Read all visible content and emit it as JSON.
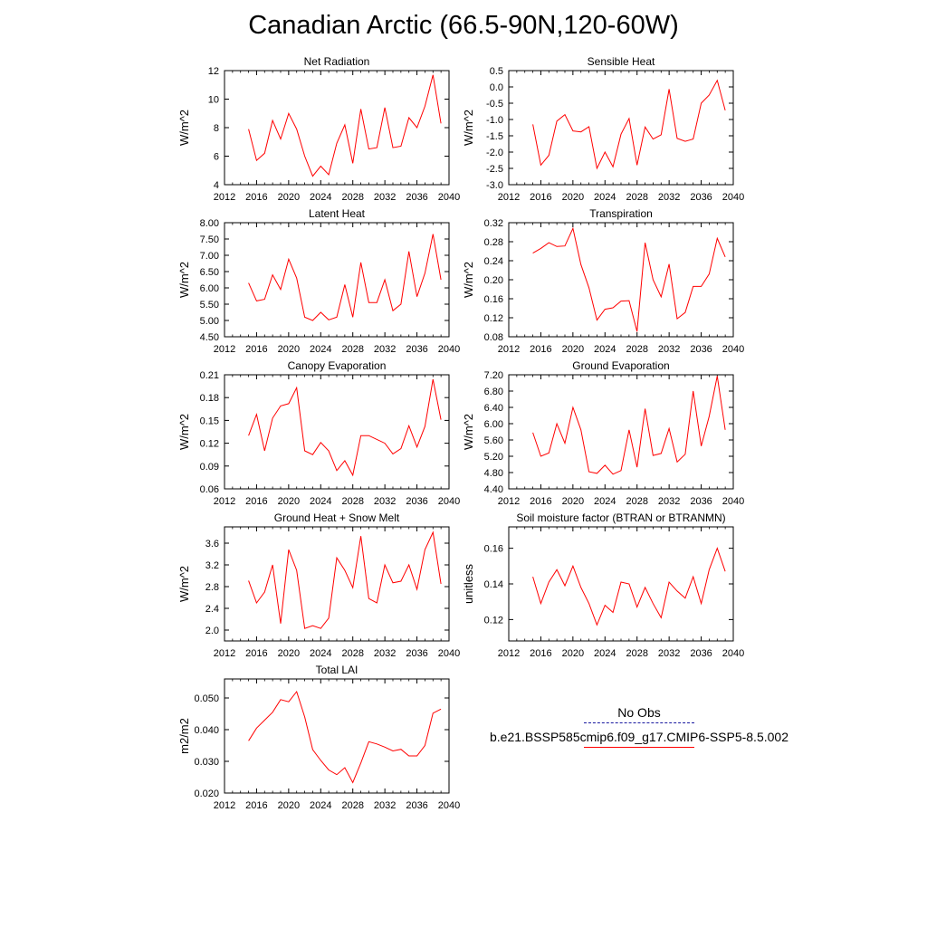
{
  "figure": {
    "title": "Canadian Arctic (66.5-90N,120-60W)"
  },
  "legend": [
    {
      "label": "No Obs",
      "style": "dashed",
      "color": "#1a1aa0"
    },
    {
      "label": "b.e21.BSSP585cmip6.f09_g17.CMIP6-SSP5-8.5.002",
      "style": "solid",
      "color": "#ff0000"
    }
  ],
  "chart_data": [
    {
      "type": "line",
      "title": "Net Radiation",
      "ylabel": "W/m^2",
      "xlim": [
        2012,
        2040
      ],
      "xticks": [
        2012,
        2016,
        2020,
        2024,
        2028,
        2032,
        2036,
        2040
      ],
      "ylim": [
        4,
        12
      ],
      "yticks": [
        "4",
        "6",
        "8",
        "10",
        "12"
      ],
      "series": [
        {
          "color": "#ff0000",
          "x": [
            2015,
            2016,
            2017,
            2018,
            2019,
            2020,
            2021,
            2022,
            2023,
            2024,
            2025,
            2026,
            2027,
            2028,
            2029,
            2030,
            2031,
            2032,
            2033,
            2034,
            2035,
            2036,
            2037,
            2038,
            2039
          ],
          "values": [
            7.9,
            5.7,
            6.2,
            8.5,
            7.2,
            9.0,
            7.9,
            6.0,
            4.6,
            5.3,
            4.7,
            6.9,
            8.2,
            5.5,
            9.3,
            6.5,
            6.6,
            9.4,
            6.6,
            6.7,
            8.7,
            8.0,
            9.5,
            11.7,
            8.3
          ]
        }
      ]
    },
    {
      "type": "line",
      "title": "Sensible Heat",
      "ylabel": "W/m^2",
      "xlim": [
        2012,
        2040
      ],
      "xticks": [
        2012,
        2016,
        2020,
        2024,
        2028,
        2032,
        2036,
        2040
      ],
      "ylim": [
        -3.0,
        0.5
      ],
      "yticks": [
        "-3.0",
        "-2.5",
        "-2.0",
        "-1.5",
        "-1.0",
        "-0.5",
        "0.0",
        "0.5"
      ],
      "series": [
        {
          "color": "#ff0000",
          "x": [
            2015,
            2016,
            2017,
            2018,
            2019,
            2020,
            2021,
            2022,
            2023,
            2024,
            2025,
            2026,
            2027,
            2028,
            2029,
            2030,
            2031,
            2032,
            2033,
            2034,
            2035,
            2036,
            2037,
            2038,
            2039
          ],
          "values": [
            -1.15,
            -2.4,
            -2.1,
            -1.05,
            -0.85,
            -1.35,
            -1.38,
            -1.22,
            -2.5,
            -2.0,
            -2.45,
            -1.45,
            -0.97,
            -2.4,
            -1.23,
            -1.6,
            -1.47,
            -0.07,
            -1.58,
            -1.67,
            -1.6,
            -0.5,
            -0.25,
            0.2,
            -0.72
          ]
        }
      ]
    },
    {
      "type": "line",
      "title": "Latent Heat",
      "ylabel": "W/m^2",
      "xlim": [
        2012,
        2040
      ],
      "xticks": [
        2012,
        2016,
        2020,
        2024,
        2028,
        2032,
        2036,
        2040
      ],
      "ylim": [
        4.5,
        8.0
      ],
      "yticks": [
        "4.50",
        "5.00",
        "5.50",
        "6.00",
        "6.50",
        "7.00",
        "7.50",
        "8.00"
      ],
      "series": [
        {
          "color": "#ff0000",
          "x": [
            2015,
            2016,
            2017,
            2018,
            2019,
            2020,
            2021,
            2022,
            2023,
            2024,
            2025,
            2026,
            2027,
            2028,
            2029,
            2030,
            2031,
            2032,
            2033,
            2034,
            2035,
            2036,
            2037,
            2038,
            2039
          ],
          "values": [
            6.15,
            5.6,
            5.65,
            6.4,
            5.95,
            6.88,
            6.3,
            5.1,
            5.0,
            5.25,
            5.02,
            5.1,
            6.1,
            5.1,
            6.78,
            5.55,
            5.55,
            6.25,
            5.3,
            5.5,
            7.12,
            5.73,
            6.45,
            7.65,
            6.25
          ]
        }
      ]
    },
    {
      "type": "line",
      "title": "Transpiration",
      "ylabel": "W/m^2",
      "xlim": [
        2012,
        2040
      ],
      "xticks": [
        2012,
        2016,
        2020,
        2024,
        2028,
        2032,
        2036,
        2040
      ],
      "ylim": [
        0.08,
        0.32
      ],
      "yticks": [
        "0.08",
        "0.12",
        "0.16",
        "0.20",
        "0.24",
        "0.28",
        "0.32"
      ],
      "series": [
        {
          "color": "#ff0000",
          "x": [
            2015,
            2016,
            2017,
            2018,
            2019,
            2020,
            2021,
            2022,
            2023,
            2024,
            2025,
            2026,
            2027,
            2028,
            2029,
            2030,
            2031,
            2032,
            2033,
            2034,
            2035,
            2036,
            2037,
            2038,
            2039
          ],
          "values": [
            0.256,
            0.266,
            0.278,
            0.27,
            0.271,
            0.308,
            0.232,
            0.183,
            0.115,
            0.138,
            0.141,
            0.155,
            0.156,
            0.091,
            0.278,
            0.2,
            0.164,
            0.233,
            0.118,
            0.131,
            0.186,
            0.186,
            0.212,
            0.287,
            0.248
          ]
        }
      ]
    },
    {
      "type": "line",
      "title": "Canopy Evaporation",
      "ylabel": "W/m^2",
      "xlim": [
        2012,
        2040
      ],
      "xticks": [
        2012,
        2016,
        2020,
        2024,
        2028,
        2032,
        2036,
        2040
      ],
      "ylim": [
        0.06,
        0.21
      ],
      "yticks": [
        "0.06",
        "0.09",
        "0.12",
        "0.15",
        "0.18",
        "0.21"
      ],
      "series": [
        {
          "color": "#ff0000",
          "x": [
            2015,
            2016,
            2017,
            2018,
            2019,
            2020,
            2021,
            2022,
            2023,
            2024,
            2025,
            2026,
            2027,
            2028,
            2029,
            2030,
            2031,
            2032,
            2033,
            2034,
            2035,
            2036,
            2037,
            2038,
            2039
          ],
          "values": [
            0.13,
            0.158,
            0.11,
            0.153,
            0.169,
            0.172,
            0.193,
            0.11,
            0.105,
            0.121,
            0.11,
            0.084,
            0.097,
            0.078,
            0.13,
            0.13,
            0.125,
            0.12,
            0.106,
            0.113,
            0.143,
            0.115,
            0.142,
            0.204,
            0.151
          ]
        }
      ]
    },
    {
      "type": "line",
      "title": "Ground Evaporation",
      "ylabel": "W/m^2",
      "xlim": [
        2012,
        2040
      ],
      "xticks": [
        2012,
        2016,
        2020,
        2024,
        2028,
        2032,
        2036,
        2040
      ],
      "ylim": [
        4.4,
        7.2
      ],
      "yticks": [
        "4.40",
        "4.80",
        "5.20",
        "5.60",
        "6.00",
        "6.40",
        "6.80",
        "7.20"
      ],
      "series": [
        {
          "color": "#ff0000",
          "x": [
            2015,
            2016,
            2017,
            2018,
            2019,
            2020,
            2021,
            2022,
            2023,
            2024,
            2025,
            2026,
            2027,
            2028,
            2029,
            2030,
            2031,
            2032,
            2033,
            2034,
            2035,
            2036,
            2037,
            2038,
            2039
          ],
          "values": [
            5.78,
            5.2,
            5.28,
            6.0,
            5.52,
            6.4,
            5.85,
            4.82,
            4.78,
            4.98,
            4.76,
            4.85,
            5.85,
            4.93,
            6.37,
            5.22,
            5.27,
            5.88,
            5.06,
            5.25,
            6.8,
            5.45,
            6.18,
            7.17,
            5.85
          ]
        }
      ]
    },
    {
      "type": "line",
      "title": "Ground Heat + Snow Melt",
      "ylabel": "W/m^2",
      "xlim": [
        2012,
        2040
      ],
      "xticks": [
        2012,
        2016,
        2020,
        2024,
        2028,
        2032,
        2036,
        2040
      ],
      "ylim": [
        1.8,
        3.9
      ],
      "yticks": [
        "2.0",
        "2.4",
        "2.8",
        "3.2",
        "3.6"
      ],
      "series": [
        {
          "color": "#ff0000",
          "x": [
            2015,
            2016,
            2017,
            2018,
            2019,
            2020,
            2021,
            2022,
            2023,
            2024,
            2025,
            2026,
            2027,
            2028,
            2029,
            2030,
            2031,
            2032,
            2033,
            2034,
            2035,
            2036,
            2037,
            2038,
            2039
          ],
          "values": [
            2.91,
            2.5,
            2.7,
            3.2,
            2.12,
            3.48,
            3.1,
            2.03,
            2.08,
            2.03,
            2.22,
            3.33,
            3.1,
            2.78,
            3.73,
            2.58,
            2.5,
            3.2,
            2.87,
            2.9,
            3.2,
            2.75,
            3.48,
            3.8,
            2.85
          ]
        }
      ]
    },
    {
      "type": "line",
      "title": "Soil moisture factor (BTRAN or BTRANMN)",
      "ylabel": "unitless",
      "xlim": [
        2012,
        2040
      ],
      "xticks": [
        2012,
        2016,
        2020,
        2024,
        2028,
        2032,
        2036,
        2040
      ],
      "ylim": [
        0.108,
        0.172
      ],
      "yticks": [
        "0.12",
        "0.14",
        "0.16"
      ],
      "series": [
        {
          "color": "#ff0000",
          "x": [
            2015,
            2016,
            2017,
            2018,
            2019,
            2020,
            2021,
            2022,
            2023,
            2024,
            2025,
            2026,
            2027,
            2028,
            2029,
            2030,
            2031,
            2032,
            2033,
            2034,
            2035,
            2036,
            2037,
            2038,
            2039
          ],
          "values": [
            0.144,
            0.129,
            0.141,
            0.148,
            0.139,
            0.15,
            0.138,
            0.129,
            0.117,
            0.128,
            0.124,
            0.141,
            0.14,
            0.127,
            0.138,
            0.129,
            0.121,
            0.141,
            0.136,
            0.132,
            0.144,
            0.129,
            0.148,
            0.16,
            0.147
          ]
        }
      ]
    },
    {
      "type": "line",
      "title": "Total LAI",
      "ylabel": "m2/m2",
      "xlim": [
        2012,
        2040
      ],
      "xticks": [
        2012,
        2016,
        2020,
        2024,
        2028,
        2032,
        2036,
        2040
      ],
      "ylim": [
        0.02,
        0.056
      ],
      "yticks": [
        "0.020",
        "0.030",
        "0.040",
        "0.050"
      ],
      "series": [
        {
          "color": "#ff0000",
          "x": [
            2015,
            2016,
            2017,
            2018,
            2019,
            2020,
            2021,
            2022,
            2023,
            2024,
            2025,
            2026,
            2027,
            2028,
            2029,
            2030,
            2031,
            2032,
            2033,
            2034,
            2035,
            2036,
            2037,
            2038,
            2039
          ],
          "values": [
            0.0365,
            0.0405,
            0.043,
            0.0455,
            0.0495,
            0.0488,
            0.052,
            0.044,
            0.0337,
            0.0303,
            0.0273,
            0.0258,
            0.028,
            0.0233,
            0.0295,
            0.0362,
            0.0355,
            0.0345,
            0.0333,
            0.0338,
            0.0317,
            0.0317,
            0.035,
            0.0452,
            0.0465
          ]
        }
      ]
    }
  ]
}
